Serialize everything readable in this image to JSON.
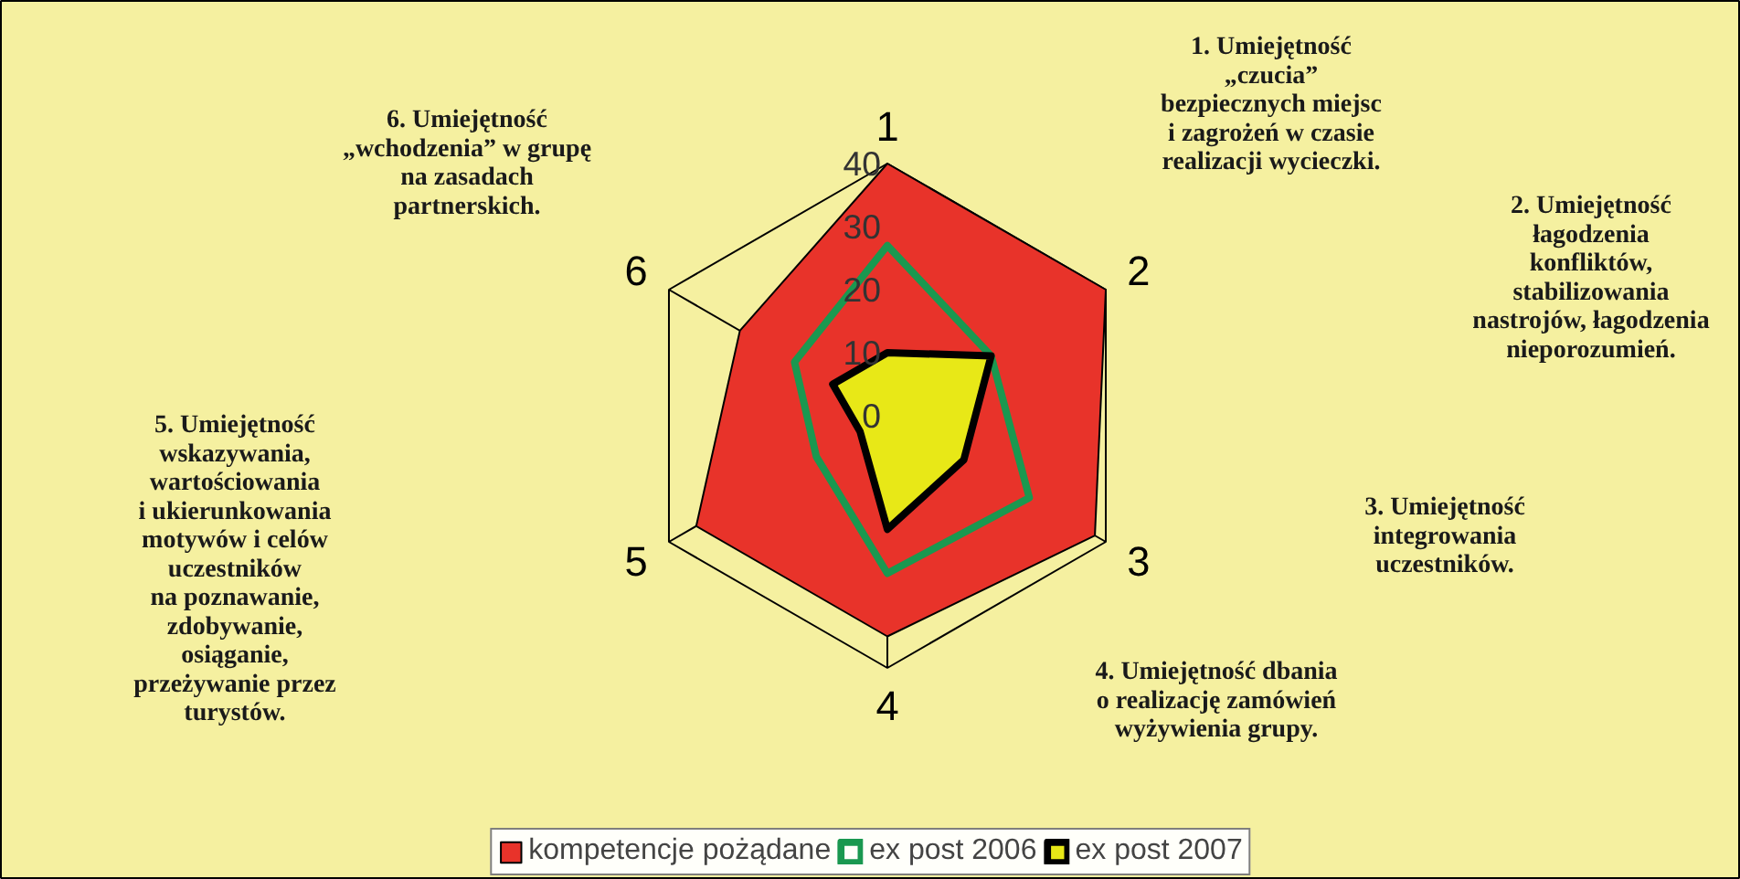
{
  "chart_data": {
    "type": "radar",
    "categories": [
      "1",
      "2",
      "3",
      "4",
      "5",
      "6"
    ],
    "series": [
      {
        "name": "kompetencje pożądane",
        "color": "#e8332a",
        "values": [
          40,
          40,
          38,
          35,
          35,
          27
        ]
      },
      {
        "name": "ex post 2006",
        "color": "#1a9850",
        "values": [
          27,
          19,
          26,
          25,
          13,
          17
        ]
      },
      {
        "name": "ex post 2007",
        "color": "#000000",
        "values": [
          10,
          19,
          14,
          18,
          5,
          10
        ]
      }
    ],
    "ylim": [
      0,
      40
    ],
    "yticks": [
      0,
      10,
      20,
      30,
      40
    ],
    "grid": true,
    "legend": "bottom",
    "annotations": [
      "1. Umiejętność\n„czucia”\nbezpiecznych miejsc\ni zagrożeń w czasie\nrealizacji wycieczki.",
      "2. Umiejętność\nłagodzenia\nkonfliktów,\nstabilizowania\nnastrojów, łagodzenia\nnieporozumień.",
      "3. Umiejętność\nintegrowania\nuczestników.",
      "4. Umiejętność dbania\no realizację zamówień\nwyżywienia grupy.",
      "5. Umiejętność\nwskazywania,\nwartościowania\ni ukierunkowania\nmotywów i celów\nuczestników\nna poznawanie,\nzdobywanie,\nosiąganie,\nprzeżywanie przez\nturystów.",
      "6. Umiejętność\n„wchodzenia” w grupę\nna zasadach\npartnerskich."
    ]
  }
}
